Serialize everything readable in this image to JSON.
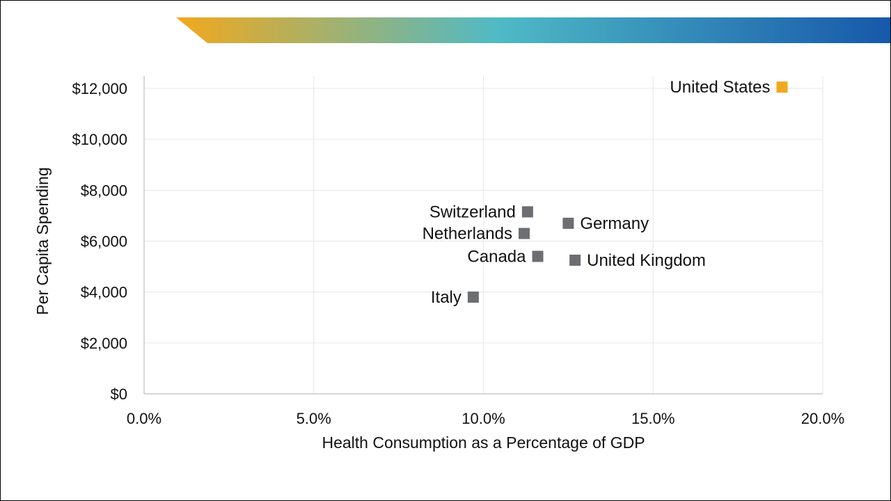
{
  "chart_data": {
    "type": "scatter",
    "xlabel": "Health Consumption as a Percentage of GDP",
    "ylabel": "Per Capita Spending",
    "xlim": [
      0,
      0.2
    ],
    "ylim": [
      0,
      12000
    ],
    "x_ticks": [
      0,
      0.05,
      0.1,
      0.15,
      0.2
    ],
    "x_tick_labels": [
      "0.0%",
      "5.0%",
      "10.0%",
      "15.0%",
      "20.0%"
    ],
    "y_ticks": [
      0,
      2000,
      4000,
      6000,
      8000,
      10000,
      12000
    ],
    "y_tick_labels": [
      "$0",
      "$2,000",
      "$4,000",
      "$6,000",
      "$8,000",
      "$10,000",
      "$12,000"
    ],
    "grid": true,
    "colors": {
      "highlight": "#f2a81d",
      "default": "#6d6e71",
      "grid": "#e6e6e6",
      "axis": "#bfbfbf"
    },
    "points": [
      {
        "name": "United States",
        "x": 0.188,
        "y": 12050,
        "highlight": true,
        "label_side": "left"
      },
      {
        "name": "Switzerland",
        "x": 0.113,
        "y": 7150,
        "highlight": false,
        "label_side": "left"
      },
      {
        "name": "Germany",
        "x": 0.125,
        "y": 6700,
        "highlight": false,
        "label_side": "right"
      },
      {
        "name": "Netherlands",
        "x": 0.112,
        "y": 6300,
        "highlight": false,
        "label_side": "left"
      },
      {
        "name": "Canada",
        "x": 0.116,
        "y": 5400,
        "highlight": false,
        "label_side": "left"
      },
      {
        "name": "United Kingdom",
        "x": 0.127,
        "y": 5250,
        "highlight": false,
        "label_side": "right"
      },
      {
        "name": "Italy",
        "x": 0.097,
        "y": 3800,
        "highlight": false,
        "label_side": "left"
      }
    ]
  }
}
